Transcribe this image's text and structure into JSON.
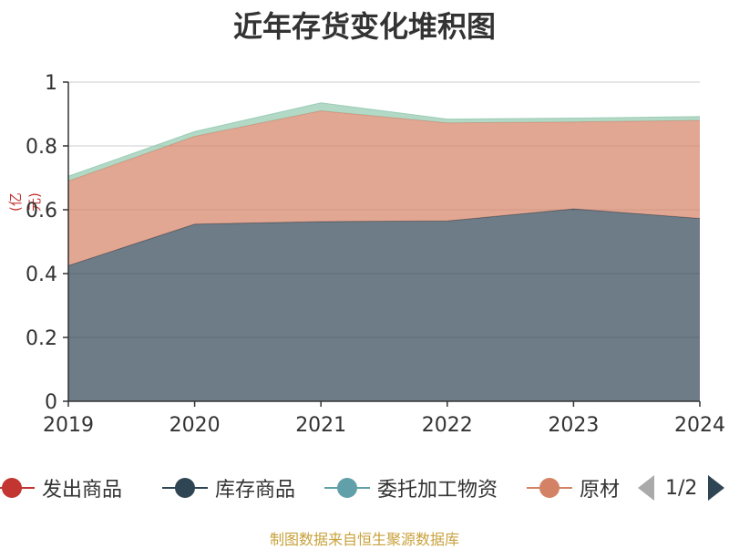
{
  "title": "近年存货变化堆积图",
  "unit": "(亿元)",
  "source": "制图数据来自恒生聚源数据库",
  "legend_page": "1/2",
  "chart_data": {
    "type": "area",
    "stacked": true,
    "title": "近年存货变化堆积图",
    "ylabel": "(亿元)",
    "ylim": [
      0,
      1
    ],
    "yticks": [
      "0",
      "0.2",
      "0.4",
      "0.6",
      "0.8",
      "1"
    ],
    "ytick_values": [
      0,
      0.2,
      0.4,
      0.6,
      0.8,
      1
    ],
    "categories": [
      "2019",
      "2020",
      "2021",
      "2022",
      "2023",
      "2024"
    ],
    "grid": true,
    "legend_position": "bottom",
    "series": [
      {
        "name": "发出商品",
        "color": "#c23531",
        "values": [
          0,
          0,
          0,
          0,
          0,
          0
        ]
      },
      {
        "name": "库存商品",
        "color": "#2f4554",
        "values": [
          0.425,
          0.555,
          0.563,
          0.565,
          0.603,
          0.573
        ]
      },
      {
        "name": "委托加工物资",
        "color": "#61a0a8",
        "values": [
          0,
          0,
          0,
          0,
          0,
          0
        ]
      },
      {
        "name": "原材",
        "color": "#d48265",
        "values": [
          0.265,
          0.275,
          0.347,
          0.307,
          0.272,
          0.307
        ]
      },
      {
        "name": "",
        "color": "#91c7ae",
        "values": [
          0.015,
          0.015,
          0.025,
          0.012,
          0.012,
          0.012
        ]
      }
    ]
  }
}
